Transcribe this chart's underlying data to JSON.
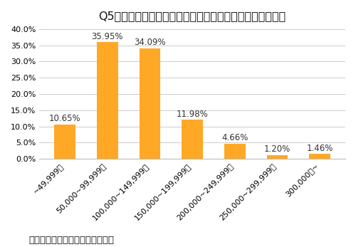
{
  "title": "Q5：直近の車検について、出費はいくらくらいでしたか？",
  "categories": [
    "~49,999円",
    "50,000~99,999円",
    "100,000~149,999円",
    "150,000~199,999円",
    "200,000~249,999円",
    "250,000~299,999円",
    "300,000円~"
  ],
  "values": [
    10.65,
    35.95,
    34.09,
    11.98,
    4.66,
    1.2,
    1.46
  ],
  "bar_color": "#FFA826",
  "background_color": "#ffffff",
  "ylim": [
    0,
    40
  ],
  "yticks": [
    0,
    5.0,
    10.0,
    15.0,
    20.0,
    25.0,
    30.0,
    35.0,
    40.0
  ],
  "ytick_labels": [
    "0.0%",
    "5.0%",
    "10.0%",
    "15.0%",
    "20.0%",
    "25.0%",
    "30.0%",
    "35.0%",
    "40.0%"
  ],
  "footer": "カーリースの定額カルモくん調べ",
  "title_fontsize": 11.5,
  "label_fontsize": 8.5,
  "tick_fontsize": 8,
  "footer_fontsize": 9.5
}
